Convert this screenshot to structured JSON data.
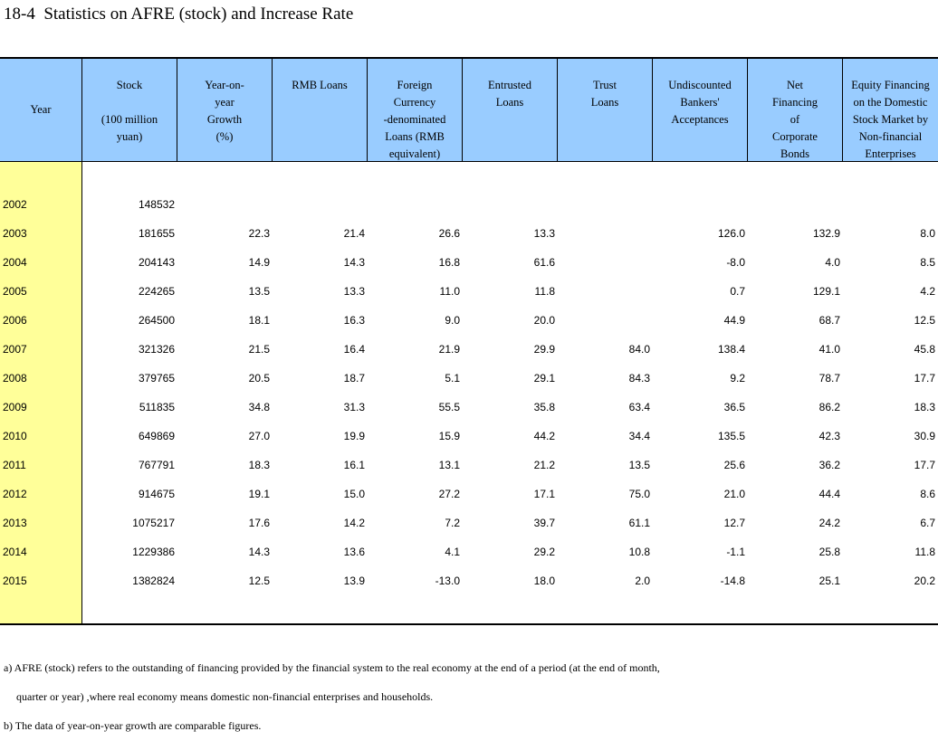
{
  "title": "18-4  Statistics on AFRE (stock) and Increase Rate",
  "headers": [
    {
      "key": "year",
      "label": "Year"
    },
    {
      "key": "stock",
      "label": "Stock\n\n(100 million\nyuan)"
    },
    {
      "key": "growth",
      "label": "Year-on-\nyear\nGrowth\n(%)"
    },
    {
      "key": "rmb",
      "label": "RMB Loans"
    },
    {
      "key": "foreign",
      "label": "Foreign\nCurrency\n-denominated\nLoans (RMB\nequivalent)"
    },
    {
      "key": "entrusted",
      "label": "Entrusted\nLoans"
    },
    {
      "key": "trust",
      "label": "Trust\nLoans"
    },
    {
      "key": "bankers",
      "label": "Undiscounted\nBankers'\nAcceptances"
    },
    {
      "key": "bonds",
      "label": "Net\nFinancing\nof\nCorporate\nBonds"
    },
    {
      "key": "equity",
      "label": "Equity Financing\non the Domestic\nStock Market by\nNon-financial\nEnterprises"
    }
  ],
  "rows": [
    {
      "year": "2002",
      "stock": "148532",
      "growth": "",
      "rmb": "",
      "foreign": "",
      "entrusted": "",
      "trust": "",
      "bankers": "",
      "bonds": "",
      "equity": ""
    },
    {
      "year": "2003",
      "stock": "181655",
      "growth": "22.3",
      "rmb": "21.4",
      "foreign": "26.6",
      "entrusted": "13.3",
      "trust": "",
      "bankers": "126.0",
      "bonds": "132.9",
      "equity": "8.0"
    },
    {
      "year": "2004",
      "stock": "204143",
      "growth": "14.9",
      "rmb": "14.3",
      "foreign": "16.8",
      "entrusted": "61.6",
      "trust": "",
      "bankers": "-8.0",
      "bonds": "4.0",
      "equity": "8.5"
    },
    {
      "year": "2005",
      "stock": "224265",
      "growth": "13.5",
      "rmb": "13.3",
      "foreign": "11.0",
      "entrusted": "11.8",
      "trust": "",
      "bankers": "0.7",
      "bonds": "129.1",
      "equity": "4.2"
    },
    {
      "year": "2006",
      "stock": "264500",
      "growth": "18.1",
      "rmb": "16.3",
      "foreign": "9.0",
      "entrusted": "20.0",
      "trust": "",
      "bankers": "44.9",
      "bonds": "68.7",
      "equity": "12.5"
    },
    {
      "year": "2007",
      "stock": "321326",
      "growth": "21.5",
      "rmb": "16.4",
      "foreign": "21.9",
      "entrusted": "29.9",
      "trust": "84.0",
      "bankers": "138.4",
      "bonds": "41.0",
      "equity": "45.8"
    },
    {
      "year": "2008",
      "stock": "379765",
      "growth": "20.5",
      "rmb": "18.7",
      "foreign": "5.1",
      "entrusted": "29.1",
      "trust": "84.3",
      "bankers": "9.2",
      "bonds": "78.7",
      "equity": "17.7"
    },
    {
      "year": "2009",
      "stock": "511835",
      "growth": "34.8",
      "rmb": "31.3",
      "foreign": "55.5",
      "entrusted": "35.8",
      "trust": "63.4",
      "bankers": "36.5",
      "bonds": "86.2",
      "equity": "18.3"
    },
    {
      "year": "2010",
      "stock": "649869",
      "growth": "27.0",
      "rmb": "19.9",
      "foreign": "15.9",
      "entrusted": "44.2",
      "trust": "34.4",
      "bankers": "135.5",
      "bonds": "42.3",
      "equity": "30.9"
    },
    {
      "year": "2011",
      "stock": "767791",
      "growth": "18.3",
      "rmb": "16.1",
      "foreign": "13.1",
      "entrusted": "21.2",
      "trust": "13.5",
      "bankers": "25.6",
      "bonds": "36.2",
      "equity": "17.7"
    },
    {
      "year": "2012",
      "stock": "914675",
      "growth": "19.1",
      "rmb": "15.0",
      "foreign": "27.2",
      "entrusted": "17.1",
      "trust": "75.0",
      "bankers": "21.0",
      "bonds": "44.4",
      "equity": "8.6"
    },
    {
      "year": "2013",
      "stock": "1075217",
      "growth": "17.6",
      "rmb": "14.2",
      "foreign": "7.2",
      "entrusted": "39.7",
      "trust": "61.1",
      "bankers": "12.7",
      "bonds": "24.2",
      "equity": "6.7"
    },
    {
      "year": "2014",
      "stock": "1229386",
      "growth": "14.3",
      "rmb": "13.6",
      "foreign": "4.1",
      "entrusted": "29.2",
      "trust": "10.8",
      "bankers": "-1.1",
      "bonds": "25.8",
      "equity": "11.8"
    },
    {
      "year": "2015",
      "stock": "1382824",
      "growth": "12.5",
      "rmb": "13.9",
      "foreign": "-13.0",
      "entrusted": "18.0",
      "trust": "2.0",
      "bankers": "-14.8",
      "bonds": "25.1",
      "equity": "20.2"
    }
  ],
  "notes": {
    "a_line1": "a) AFRE (stock) refers to the outstanding of financing provided by the financial system to the real economy at the end of a period (at the end of month,",
    "a_line2": "quarter or year) ,where real economy means domestic non-financial enterprises and households.",
    "b": "b) The data of year-on-year growth are comparable figures."
  },
  "colors": {
    "header_bg": "#99ccff",
    "year_col_bg": "#ffff99",
    "rule": "#000000"
  }
}
